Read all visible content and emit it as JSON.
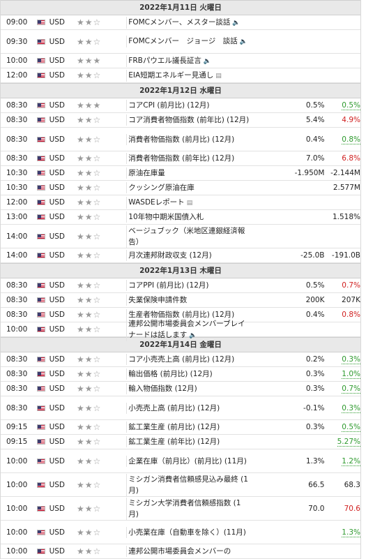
{
  "days": [
    {
      "date": "2022年1月11日 火曜日",
      "events": [
        {
          "time": "09:00",
          "cur": "USD",
          "imp": 2,
          "event": "FOMCメンバー、メスター談話",
          "icon": "speaker-icon",
          "actual": "",
          "forecast": "",
          "previous": "",
          "prev_state": ""
        },
        {
          "time": "09:30",
          "cur": "USD",
          "imp": 2,
          "event": "FOMCメンバー　ジョージ　談話",
          "icon": "speaker-icon",
          "actual": "",
          "forecast": "",
          "previous": "",
          "prev_state": ""
        },
        {
          "time": "10:00",
          "cur": "USD",
          "imp": 3,
          "event": "FRBパウエル議長証言",
          "icon": "speaker-icon",
          "actual": "",
          "forecast": "",
          "previous": "",
          "prev_state": ""
        },
        {
          "time": "12:00",
          "cur": "USD",
          "imp": 2,
          "event": "EIA短期エネルギー見通し",
          "icon": "document-icon",
          "actual": "",
          "forecast": "",
          "previous": "",
          "prev_state": ""
        }
      ]
    },
    {
      "date": "2022年1月12日 水曜日",
      "events": [
        {
          "time": "08:30",
          "cur": "USD",
          "imp": 3,
          "event": "コアCPI (前月比) (12月)",
          "icon": "",
          "actual": "",
          "forecast": "0.5%",
          "previous": "0.5%",
          "prev_state": "up"
        },
        {
          "time": "08:30",
          "cur": "USD",
          "imp": 2,
          "event": "コア消費者物価指数 (前年比) (12月)",
          "icon": "",
          "actual": "",
          "forecast": "5.4%",
          "previous": "4.9%",
          "prev_state": "down"
        },
        {
          "time": "08:30",
          "cur": "USD",
          "imp": 2,
          "event": "消費者物価指数 (前月比) (12月)",
          "icon": "",
          "actual": "",
          "forecast": "0.4%",
          "previous": "0.8%",
          "prev_state": "up"
        },
        {
          "time": "08:30",
          "cur": "USD",
          "imp": 2,
          "event": "消費者物価指数 (前年比) (12月)",
          "icon": "",
          "actual": "",
          "forecast": "7.0%",
          "previous": "6.8%",
          "prev_state": "down"
        },
        {
          "time": "10:30",
          "cur": "USD",
          "imp": 2,
          "event": "原油在庫量",
          "icon": "",
          "actual": "",
          "forecast": "-1.950M",
          "previous": "-2.144M",
          "prev_state": "plain"
        },
        {
          "time": "10:30",
          "cur": "USD",
          "imp": 2,
          "event": "クッシング原油在庫",
          "icon": "",
          "actual": "",
          "forecast": "",
          "previous": "2.577M",
          "prev_state": "plain"
        },
        {
          "time": "12:00",
          "cur": "USD",
          "imp": 2,
          "event": "WASDEレポート",
          "icon": "document-icon",
          "actual": "",
          "forecast": "",
          "previous": "",
          "prev_state": ""
        },
        {
          "time": "13:00",
          "cur": "USD",
          "imp": 2,
          "event": "10年物中期米国債入札",
          "icon": "",
          "actual": "",
          "forecast": "",
          "previous": "1.518%",
          "prev_state": "plain"
        },
        {
          "time": "14:00",
          "cur": "USD",
          "imp": 2,
          "event": "ベージュブック（米地区連銀経済報告）",
          "icon": "",
          "actual": "",
          "forecast": "",
          "previous": "",
          "prev_state": ""
        },
        {
          "time": "14:00",
          "cur": "USD",
          "imp": 2,
          "event": "月次連邦財政収支 (12月)",
          "icon": "",
          "actual": "",
          "forecast": "-25.0B",
          "previous": "-191.0B",
          "prev_state": "plain"
        }
      ]
    },
    {
      "date": "2022年1月13日 木曜日",
      "events": [
        {
          "time": "08:30",
          "cur": "USD",
          "imp": 2,
          "event": "コアPPI (前月比) (12月)",
          "icon": "",
          "actual": "",
          "forecast": "0.5%",
          "previous": "0.7%",
          "prev_state": "down"
        },
        {
          "time": "08:30",
          "cur": "USD",
          "imp": 2,
          "event": "失業保険申請件数",
          "icon": "",
          "actual": "",
          "forecast": "200K",
          "previous": "207K",
          "prev_state": "plain"
        },
        {
          "time": "08:30",
          "cur": "USD",
          "imp": 2,
          "event": "生産者物価指数 (前月比) (12月)",
          "icon": "",
          "actual": "",
          "forecast": "0.4%",
          "previous": "0.8%",
          "prev_state": "down"
        },
        {
          "time": "10:00",
          "cur": "USD",
          "imp": 2,
          "event": "連邦公開市場委員会メンバーブレイナードは話します",
          "icon": "speaker-icon",
          "actual": "",
          "forecast": "",
          "previous": "",
          "prev_state": ""
        }
      ]
    },
    {
      "date": "2022年1月14日 金曜日",
      "events": [
        {
          "time": "08:30",
          "cur": "USD",
          "imp": 2,
          "event": "コア小売売上高 (前月比) (12月)",
          "icon": "",
          "actual": "",
          "forecast": "0.2%",
          "previous": "0.3%",
          "prev_state": "up"
        },
        {
          "time": "08:30",
          "cur": "USD",
          "imp": 2,
          "event": "輸出価格 (前月比) (12月)",
          "icon": "",
          "actual": "",
          "forecast": "0.3%",
          "previous": "1.0%",
          "prev_state": "up"
        },
        {
          "time": "08:30",
          "cur": "USD",
          "imp": 2,
          "event": "輸入物価指数 (12月)",
          "icon": "",
          "actual": "",
          "forecast": "0.3%",
          "previous": "0.7%",
          "prev_state": "up"
        },
        {
          "time": "08:30",
          "cur": "USD",
          "imp": 2,
          "event": "小売売上高 (前月比) (12月)",
          "icon": "",
          "actual": "",
          "forecast": "-0.1%",
          "previous": "0.3%",
          "prev_state": "up"
        },
        {
          "time": "09:15",
          "cur": "USD",
          "imp": 2,
          "event": "鉱工業生産 (前月比) (12月)",
          "icon": "",
          "actual": "",
          "forecast": "0.3%",
          "previous": "0.5%",
          "prev_state": "up"
        },
        {
          "time": "09:15",
          "cur": "USD",
          "imp": 2,
          "event": "鉱工業生産 (前年比) (12月)",
          "icon": "",
          "actual": "",
          "forecast": "",
          "previous": "5.27%",
          "prev_state": "up"
        },
        {
          "time": "10:00",
          "cur": "USD",
          "imp": 2,
          "event": "企業在庫（前月比）(前月比) (11月)",
          "icon": "",
          "actual": "",
          "forecast": "1.3%",
          "previous": "1.2%",
          "prev_state": "up"
        },
        {
          "time": "10:00",
          "cur": "USD",
          "imp": 2,
          "event": "ミシガン消費者信頼感見込み最終 (1月)",
          "icon": "",
          "actual": "",
          "forecast": "66.5",
          "previous": "68.3",
          "prev_state": "plain"
        },
        {
          "time": "10:00",
          "cur": "USD",
          "imp": 2,
          "event": "ミシガン大学消費者信頼感指数 (1月)",
          "icon": "",
          "actual": "",
          "forecast": "70.0",
          "previous": "70.6",
          "prev_state": "down"
        },
        {
          "time": "10:00",
          "cur": "USD",
          "imp": 2,
          "event": "小売業在庫（自動車を除く）(11月)",
          "icon": "",
          "actual": "",
          "forecast": "",
          "previous": "1.3%",
          "prev_state": "up"
        },
        {
          "time": "10:00",
          "cur": "USD",
          "imp": 2,
          "event": "連邦公開市場委員会メンバーの",
          "icon": "",
          "actual": "",
          "forecast": "",
          "previous": "",
          "prev_state": ""
        }
      ]
    }
  ]
}
